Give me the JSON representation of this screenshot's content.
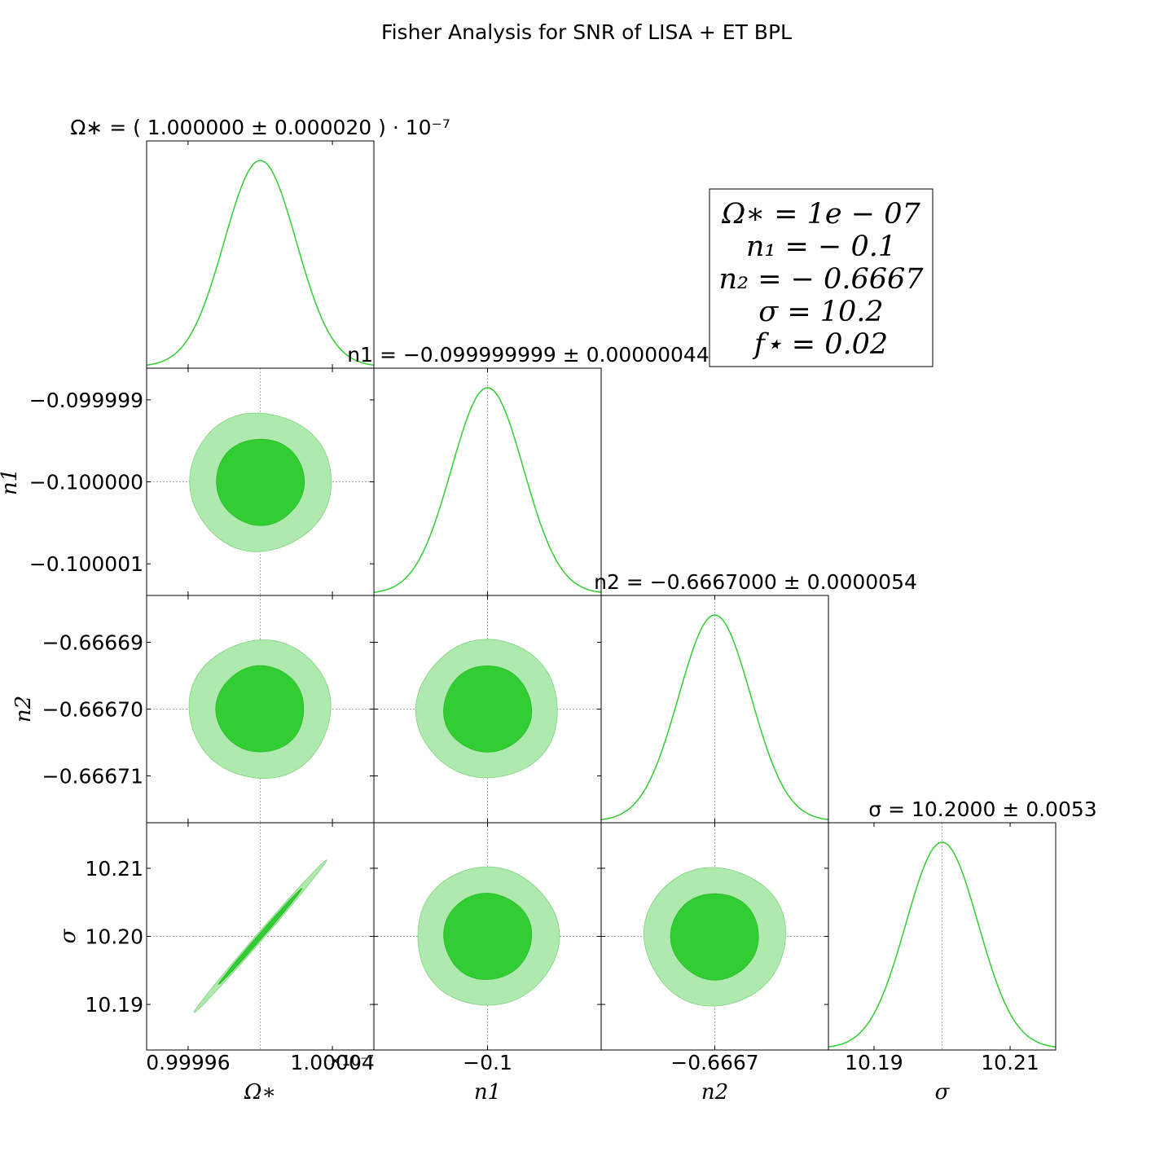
{
  "chart_data": {
    "type": "corner",
    "title": "Fisher Analysis for SNR of LISA + ET BPL",
    "colors": {
      "line": "#32cd32",
      "sigma1": "#32cd32",
      "sigma2": "#aeeaae"
    },
    "parameters": [
      {
        "name": "Ω∗",
        "axis_label": "Ω∗",
        "mean": 1.0,
        "sigma": 2e-05,
        "marginal_title": "Ω∗ = ( 1.000000 ± 0.000020 ) · 10⁻⁷",
        "offset_label": "×10⁻⁷",
        "ticks": [
          "0.99996",
          "1.00004"
        ],
        "tick_values": [
          0.99996,
          1.00004
        ]
      },
      {
        "name": "n1",
        "axis_label": "n1",
        "mean": -0.1,
        "sigma": 4.4e-07,
        "marginal_title": "n1 = −0.099999999 ± 0.00000044",
        "ticks": [
          "−0.1"
        ],
        "tick_values": [
          -0.1
        ],
        "y_ticks": [
          "−0.099999",
          "−0.100000",
          "−0.100001"
        ],
        "y_tick_values": [
          -0.099999,
          -0.1,
          -0.100001
        ]
      },
      {
        "name": "n2",
        "axis_label": "n2",
        "mean": -0.6667,
        "sigma": 5.4e-06,
        "marginal_title": "n2 = −0.6667000 ± 0.0000054",
        "ticks": [
          "−0.6667"
        ],
        "tick_values": [
          -0.6667
        ],
        "y_ticks": [
          "−0.66669",
          "−0.66670",
          "−0.66671"
        ],
        "y_tick_values": [
          -0.66669,
          -0.6667,
          -0.66671
        ]
      },
      {
        "name": "σ",
        "axis_label": "σ",
        "mean": 10.2,
        "sigma": 0.0053,
        "marginal_title": "σ = 10.2000 ± 0.0053",
        "ticks": [
          "10.19",
          "10.21"
        ],
        "tick_values": [
          10.19,
          10.21
        ],
        "y_ticks": [
          "10.21",
          "10.20",
          "10.19"
        ],
        "y_tick_values": [
          10.21,
          10.2,
          10.19
        ]
      }
    ],
    "correlations": {
      "Ω∗-σ": 0.998
    },
    "fiducial_box": [
      "Ω∗ = 1e − 07",
      "n₁ = − 0.1",
      "n₂ = − 0.6667",
      "σ = 10.2",
      "f⋆ = 0.02"
    ]
  }
}
